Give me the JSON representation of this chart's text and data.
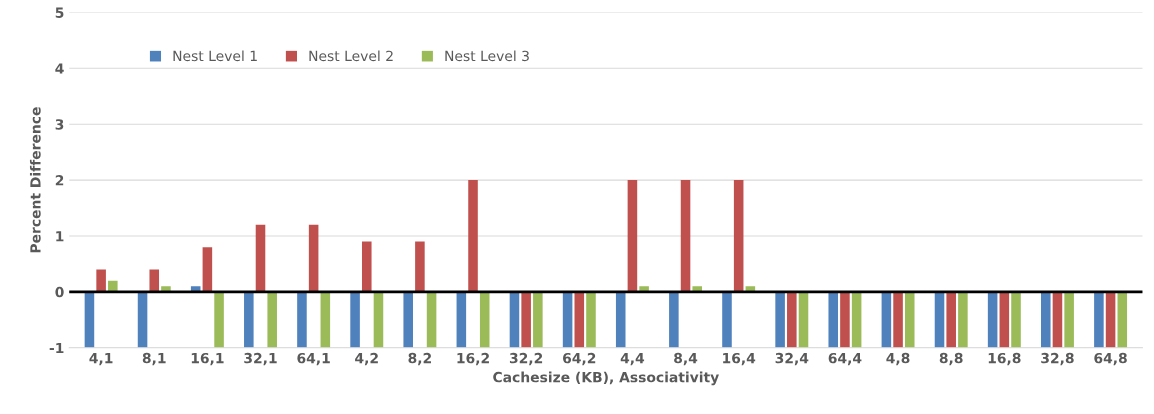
{
  "chart_data": {
    "type": "bar",
    "xlabel": "Cachesize (KB), Associativity",
    "ylabel": "Percent Difference",
    "categories": [
      "4,1",
      "8,1",
      "16,1",
      "32,1",
      "64,1",
      "4,2",
      "8,2",
      "16,2",
      "32,2",
      "64,2",
      "4,4",
      "8,4",
      "16,4",
      "32,4",
      "64,4",
      "4,8",
      "8,8",
      "16,8",
      "32,8",
      "64,8"
    ],
    "series": [
      {
        "name": "Nest Level 1",
        "color": "#4f81bd",
        "values": [
          -1,
          -1,
          0.1,
          -1,
          -1,
          -1,
          -1,
          -1,
          -1,
          -1,
          -1,
          -1,
          -1,
          -1,
          -1,
          -1,
          -1,
          -1,
          -1,
          -1
        ]
      },
      {
        "name": "Nest Level 2",
        "color": "#c0504d",
        "values": [
          0.4,
          0.4,
          0.8,
          1.2,
          1.2,
          0.9,
          0.9,
          2,
          -1,
          -1,
          2,
          2,
          2,
          -1,
          -1,
          -1,
          -1,
          -1,
          -1,
          -1
        ]
      },
      {
        "name": "Nest Level 3",
        "color": "#9bbb59",
        "values": [
          0.2,
          0.1,
          -1,
          -1,
          -1,
          -1,
          -1,
          -1,
          -1,
          -1,
          0.1,
          0.1,
          0.1,
          -1,
          -1,
          -1,
          -1,
          -1,
          -1,
          -1
        ]
      }
    ],
    "ylim": [
      -1,
      5
    ],
    "yticks": [
      -1,
      0,
      1,
      2,
      3,
      4,
      5
    ],
    "grid": "y",
    "legend": "top left",
    "ref_lines": [
      {
        "axis": "y",
        "value": 0,
        "color": "#000000"
      }
    ]
  }
}
